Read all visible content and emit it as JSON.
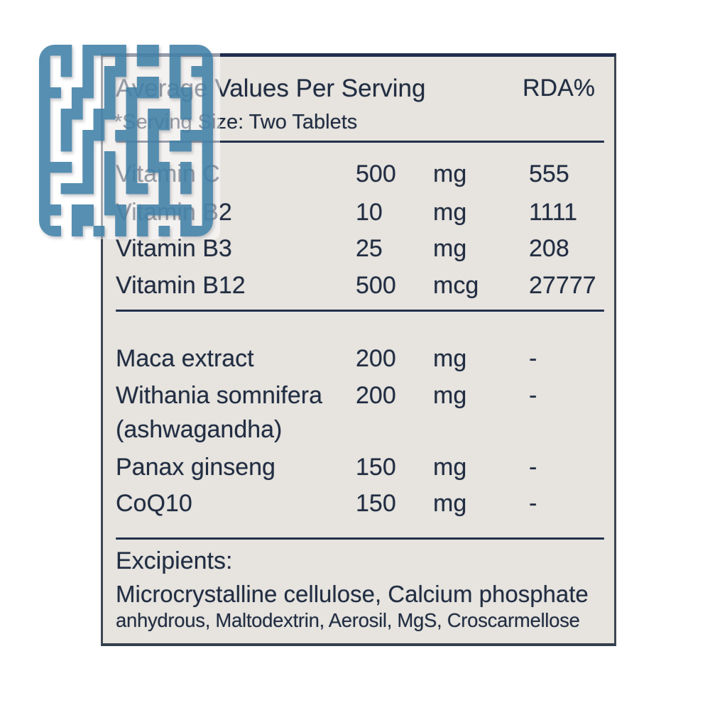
{
  "colors": {
    "logo_blue": "#3e7fa6",
    "label_background": "#e7e4df",
    "text_navy": "#212d42",
    "rule_navy": "#22304c"
  },
  "label": {
    "header": {
      "title": "Average Values Per Serving",
      "rda": "RDA%",
      "serving_note": "*Serving Size: Two Tablets"
    },
    "vitamins": [
      {
        "name": "Vitamin C",
        "amount": "500",
        "unit": "mg",
        "rda": "555"
      },
      {
        "name": "Vitamin B2",
        "amount": "10",
        "unit": "mg",
        "rda": "1111"
      },
      {
        "name": "Vitamin B3",
        "amount": "25",
        "unit": "mg",
        "rda": "208"
      },
      {
        "name": "Vitamin B12",
        "amount": "500",
        "unit": "mcg",
        "rda": "27777"
      }
    ],
    "herbs": [
      {
        "name": "Maca extract",
        "amount": "200",
        "unit": "mg",
        "rda": "-"
      },
      {
        "name": "Withania somnifera",
        "name2": "(ashwagandha)",
        "amount": "200",
        "unit": "mg",
        "rda": "-"
      },
      {
        "name": "Panax ginseng",
        "amount": "150",
        "unit": "mg",
        "rda": "-"
      },
      {
        "name": "CoQ10",
        "amount": "150",
        "unit": "mg",
        "rda": "-"
      }
    ],
    "excipients": {
      "title": "Excipients:",
      "line1": "Microcrystalline cellulose, Calcium phosphate",
      "line2": "anhydrous, Maltodextrin, Aerosil, MgS, Croscarmellose"
    }
  }
}
